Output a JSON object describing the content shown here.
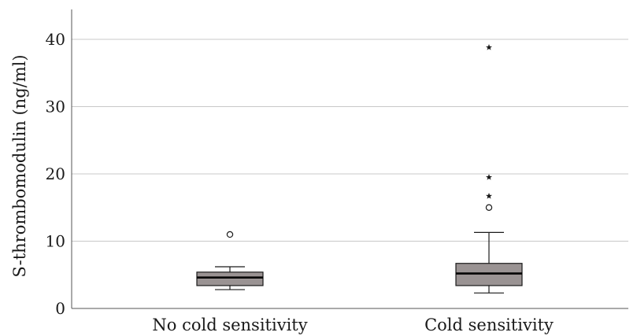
{
  "chart_data": {
    "type": "box",
    "ylabel": "S-thrombomodulin (ng/ml)",
    "xlabel": "",
    "ylim": [
      0,
      44
    ],
    "yticks": [
      0,
      10,
      20,
      30,
      40
    ],
    "ytick_labels": [
      "0",
      "10",
      "20",
      "30",
      "40"
    ],
    "grid": "horizontal",
    "categories": [
      "No cold sensitivity",
      "Cold sensitivity"
    ],
    "boxes": [
      {
        "category": "No cold sensitivity",
        "whisker_low": 2.8,
        "q1": 3.4,
        "median": 4.6,
        "q3": 5.4,
        "whisker_high": 6.2,
        "outliers": [
          {
            "value": 11.0,
            "marker": "circle"
          }
        ]
      },
      {
        "category": "Cold sensitivity",
        "whisker_low": 2.3,
        "q1": 3.4,
        "median": 5.2,
        "q3": 6.7,
        "whisker_high": 11.3,
        "outliers": [
          {
            "value": 15.0,
            "marker": "circle"
          },
          {
            "value": 16.7,
            "marker": "star"
          },
          {
            "value": 19.5,
            "marker": "star"
          },
          {
            "value": 38.8,
            "marker": "star"
          }
        ]
      }
    ],
    "colors": {
      "box_fill": "#9a9393",
      "box_stroke": "#1a1a1a",
      "grid": "#c8c8c8",
      "axis": "#555555"
    }
  }
}
